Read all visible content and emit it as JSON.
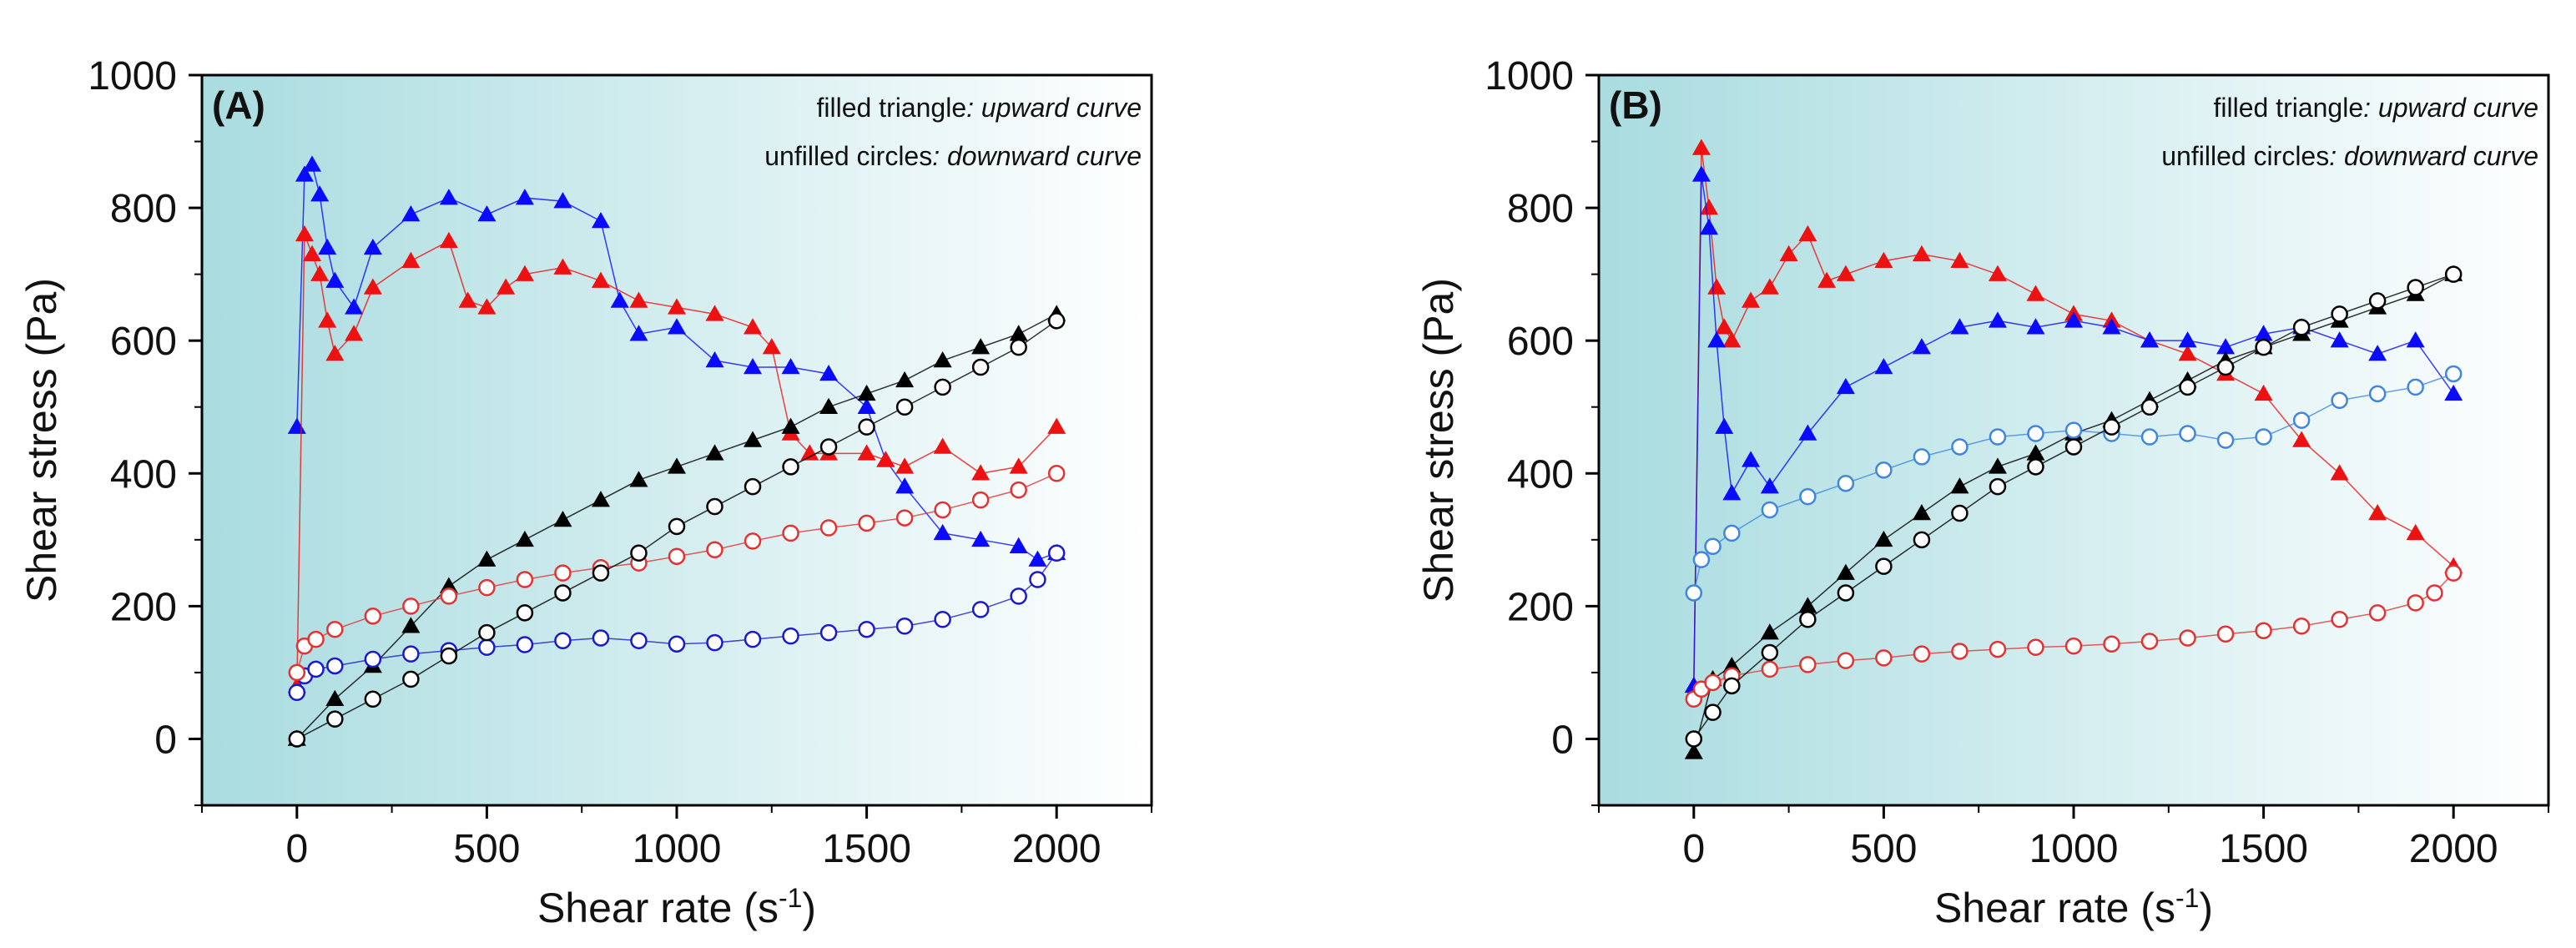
{
  "figure": {
    "panels": [
      {
        "label": "(A)"
      },
      {
        "label": "(B)"
      }
    ]
  },
  "chart_data": [
    {
      "type": "scatter",
      "panel": "(A)",
      "xlabel": "Shear rate (s",
      "xlabel_sup": "-1",
      "xlabel_close": ")",
      "ylabel": "Shear stress (Pa)",
      "xlim": [
        -250,
        2250
      ],
      "ylim": [
        -100,
        1000
      ],
      "xticks": [
        0,
        500,
        1000,
        1500,
        2000
      ],
      "yticks": [
        0,
        200,
        400,
        600,
        800,
        1000
      ],
      "legend": {
        "line1_prefix": "filled triangle",
        "line1_suffix": ": upward curve",
        "line2_prefix": "unfilled circles",
        "line2_suffix": ": downward curve",
        "position": "top-right"
      },
      "background": {
        "gradient_from": "#a9dce0",
        "gradient_to": "#ffffff"
      },
      "series": [
        {
          "color": "#0a0aff",
          "marker": "filled-triangle",
          "x": [
            0,
            20,
            40,
            60,
            80,
            100,
            150,
            200,
            300,
            400,
            500,
            600,
            700,
            800,
            850,
            900,
            1000,
            1100,
            1200,
            1300,
            1400,
            1500,
            1550,
            1600,
            1700,
            1800,
            1900,
            1950,
            2000
          ],
          "y": [
            470,
            850,
            865,
            820,
            740,
            690,
            650,
            740,
            790,
            815,
            790,
            815,
            810,
            780,
            660,
            610,
            620,
            570,
            560,
            560,
            550,
            500,
            420,
            380,
            310,
            300,
            290,
            270,
            280
          ]
        },
        {
          "color": "#ee1111",
          "marker": "filled-triangle",
          "x": [
            0,
            20,
            40,
            60,
            80,
            100,
            150,
            200,
            300,
            400,
            450,
            500,
            550,
            600,
            700,
            800,
            900,
            1000,
            1100,
            1200,
            1250,
            1300,
            1350,
            1400,
            1500,
            1550,
            1600,
            1700,
            1800,
            1900,
            2000
          ],
          "y": [
            80,
            760,
            730,
            700,
            630,
            580,
            610,
            680,
            720,
            750,
            660,
            650,
            680,
            700,
            710,
            690,
            660,
            650,
            640,
            620,
            590,
            460,
            430,
            430,
            430,
            420,
            410,
            440,
            400,
            410,
            470
          ]
        },
        {
          "color": "#000000",
          "marker": "filled-triangle",
          "x": [
            0,
            100,
            200,
            300,
            400,
            500,
            600,
            700,
            800,
            900,
            1000,
            1100,
            1200,
            1300,
            1400,
            1500,
            1600,
            1700,
            1800,
            1900,
            2000
          ],
          "y": [
            0,
            60,
            110,
            170,
            230,
            270,
            300,
            330,
            360,
            390,
            410,
            430,
            450,
            470,
            500,
            520,
            540,
            570,
            590,
            610,
            640
          ]
        },
        {
          "color": "#1a1acc",
          "marker": "open-circle",
          "x": [
            0,
            20,
            50,
            100,
            200,
            300,
            400,
            500,
            600,
            700,
            800,
            900,
            1000,
            1100,
            1200,
            1300,
            1400,
            1500,
            1600,
            1700,
            1800,
            1900,
            1950,
            2000
          ],
          "y": [
            70,
            95,
            105,
            110,
            120,
            128,
            133,
            138,
            142,
            148,
            152,
            148,
            143,
            145,
            150,
            155,
            160,
            165,
            170,
            180,
            195,
            215,
            240,
            280
          ]
        },
        {
          "color": "#e23333",
          "marker": "open-circle",
          "x": [
            0,
            20,
            50,
            100,
            200,
            300,
            400,
            500,
            600,
            700,
            800,
            900,
            1000,
            1100,
            1200,
            1300,
            1400,
            1500,
            1600,
            1700,
            1800,
            1900,
            2000
          ],
          "y": [
            100,
            140,
            150,
            165,
            185,
            200,
            215,
            228,
            240,
            250,
            258,
            265,
            275,
            285,
            298,
            310,
            318,
            325,
            333,
            345,
            360,
            375,
            400
          ]
        },
        {
          "color": "#000000",
          "marker": "open-circle",
          "x": [
            0,
            100,
            200,
            300,
            400,
            500,
            600,
            700,
            800,
            900,
            1000,
            1100,
            1200,
            1300,
            1400,
            1500,
            1600,
            1700,
            1800,
            1900,
            2000
          ],
          "y": [
            0,
            30,
            60,
            90,
            125,
            160,
            190,
            220,
            250,
            280,
            320,
            350,
            380,
            410,
            440,
            470,
            500,
            530,
            560,
            590,
            630
          ]
        }
      ]
    },
    {
      "type": "scatter",
      "panel": "(B)",
      "xlabel": "Shear rate (s",
      "xlabel_sup": "-1",
      "xlabel_close": ")",
      "ylabel": "Shear stress (Pa)",
      "xlim": [
        -250,
        2250
      ],
      "ylim": [
        -100,
        1000
      ],
      "xticks": [
        0,
        500,
        1000,
        1500,
        2000
      ],
      "yticks": [
        0,
        200,
        400,
        600,
        800,
        1000
      ],
      "legend": {
        "line1_prefix": "filled triangle",
        "line1_suffix": ": upward curve",
        "line2_prefix": "unfilled circles",
        "line2_suffix": ": downward curve",
        "position": "top-right"
      },
      "background": {
        "gradient_from": "#a9dce0",
        "gradient_to": "#ffffff"
      },
      "series": [
        {
          "color": "#ee1111",
          "marker": "filled-triangle",
          "x": [
            0,
            20,
            40,
            60,
            80,
            100,
            150,
            200,
            250,
            300,
            350,
            400,
            500,
            600,
            700,
            800,
            900,
            1000,
            1100,
            1200,
            1300,
            1400,
            1500,
            1600,
            1700,
            1800,
            1900,
            2000
          ],
          "y": [
            80,
            890,
            800,
            680,
            620,
            600,
            660,
            680,
            730,
            760,
            690,
            700,
            720,
            730,
            720,
            700,
            670,
            640,
            630,
            600,
            580,
            550,
            520,
            450,
            400,
            340,
            310,
            260
          ]
        },
        {
          "color": "#0a0aff",
          "marker": "filled-triangle",
          "x": [
            0,
            20,
            40,
            60,
            80,
            100,
            150,
            200,
            300,
            400,
            500,
            600,
            700,
            800,
            900,
            1000,
            1100,
            1200,
            1300,
            1400,
            1500,
            1600,
            1700,
            1800,
            1900,
            2000
          ],
          "y": [
            80,
            850,
            770,
            600,
            470,
            370,
            420,
            380,
            460,
            530,
            560,
            590,
            620,
            630,
            620,
            630,
            620,
            600,
            600,
            590,
            610,
            620,
            600,
            580,
            600,
            520
          ]
        },
        {
          "color": "#000000",
          "marker": "filled-triangle",
          "x": [
            0,
            50,
            100,
            200,
            300,
            400,
            500,
            600,
            700,
            800,
            900,
            1000,
            1100,
            1200,
            1300,
            1400,
            1500,
            1600,
            1700,
            1800,
            1900,
            2000
          ],
          "y": [
            -20,
            90,
            110,
            160,
            200,
            250,
            300,
            340,
            380,
            410,
            430,
            460,
            480,
            510,
            540,
            570,
            590,
            610,
            630,
            650,
            670,
            700
          ]
        },
        {
          "color": "#3f86e0",
          "marker": "open-circle",
          "x": [
            0,
            20,
            50,
            100,
            200,
            300,
            400,
            500,
            600,
            700,
            800,
            900,
            1000,
            1100,
            1200,
            1300,
            1400,
            1500,
            1600,
            1700,
            1800,
            1900,
            2000
          ],
          "y": [
            220,
            270,
            290,
            310,
            345,
            365,
            385,
            405,
            425,
            440,
            455,
            460,
            465,
            460,
            455,
            460,
            450,
            455,
            480,
            510,
            520,
            530,
            550
          ]
        },
        {
          "color": "#e23333",
          "marker": "open-circle",
          "x": [
            0,
            20,
            50,
            100,
            200,
            300,
            400,
            500,
            600,
            700,
            800,
            900,
            1000,
            1100,
            1200,
            1300,
            1400,
            1500,
            1600,
            1700,
            1800,
            1900,
            1950,
            2000
          ],
          "y": [
            60,
            75,
            85,
            95,
            105,
            112,
            118,
            122,
            128,
            132,
            135,
            138,
            140,
            143,
            147,
            152,
            158,
            163,
            170,
            180,
            190,
            205,
            220,
            250
          ]
        },
        {
          "color": "#000000",
          "marker": "open-circle",
          "x": [
            0,
            50,
            100,
            200,
            300,
            400,
            500,
            600,
            700,
            800,
            900,
            1000,
            1100,
            1200,
            1300,
            1400,
            1500,
            1600,
            1700,
            1800,
            1900,
            2000
          ],
          "y": [
            0,
            40,
            80,
            130,
            180,
            220,
            260,
            300,
            340,
            380,
            410,
            440,
            470,
            500,
            530,
            560,
            590,
            620,
            640,
            660,
            680,
            700
          ]
        }
      ]
    }
  ]
}
